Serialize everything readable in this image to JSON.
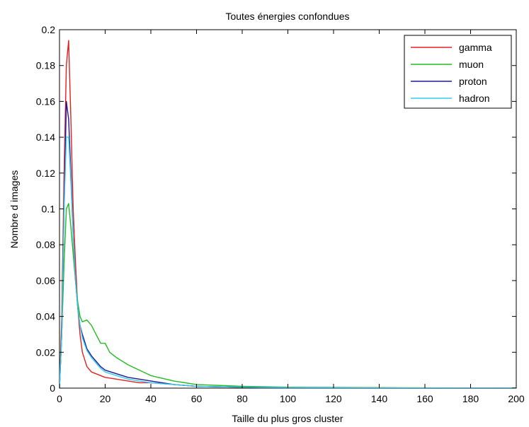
{
  "chart_data": {
    "type": "line",
    "title": "Toutes énergies confondues",
    "xlabel": "Taille du plus gros cluster",
    "ylabel": "Nombre d images",
    "xlim": [
      0,
      200
    ],
    "ylim": [
      0,
      0.2
    ],
    "x_ticks": [
      "0",
      "20",
      "40",
      "60",
      "80",
      "100",
      "120",
      "140",
      "160",
      "180",
      "200"
    ],
    "y_ticks": [
      "0",
      "0.02",
      "0.04",
      "0.06",
      "0.08",
      "0.1",
      "0.12",
      "0.14",
      "0.16",
      "0.18",
      "0.2"
    ],
    "grid": false,
    "legend_position": "top-right",
    "series": [
      {
        "name": "gamma",
        "color": "#e32020",
        "x": [
          0,
          1,
          2,
          3,
          4,
          5,
          6,
          7,
          8,
          9,
          10,
          12,
          14,
          16,
          18,
          20,
          25,
          30,
          35,
          40,
          50,
          60,
          80,
          100,
          150,
          200
        ],
        "y": [
          0,
          0.04,
          0.12,
          0.18,
          0.194,
          0.15,
          0.1,
          0.07,
          0.045,
          0.03,
          0.02,
          0.012,
          0.009,
          0.008,
          0.007,
          0.006,
          0.005,
          0.004,
          0.003,
          0.003,
          0.002,
          0.001,
          0.0005,
          0.0003,
          0.0001,
          0
        ]
      },
      {
        "name": "muon",
        "color": "#22bb22",
        "x": [
          0,
          1,
          2,
          3,
          4,
          5,
          6,
          7,
          8,
          9,
          10,
          12,
          14,
          16,
          18,
          20,
          22,
          25,
          30,
          35,
          40,
          50,
          60,
          80,
          100,
          150,
          200
        ],
        "y": [
          0,
          0.03,
          0.07,
          0.1,
          0.103,
          0.09,
          0.075,
          0.06,
          0.048,
          0.04,
          0.037,
          0.038,
          0.035,
          0.03,
          0.025,
          0.025,
          0.02,
          0.017,
          0.013,
          0.01,
          0.007,
          0.004,
          0.002,
          0.001,
          0.0005,
          0.0002,
          0
        ]
      },
      {
        "name": "proton",
        "color": "#1a1a99",
        "x": [
          0,
          1,
          2,
          3,
          4,
          5,
          6,
          7,
          8,
          9,
          10,
          12,
          14,
          16,
          18,
          20,
          25,
          30,
          35,
          40,
          50,
          60,
          80,
          100,
          150,
          200
        ],
        "y": [
          0,
          0.03,
          0.1,
          0.16,
          0.15,
          0.12,
          0.085,
          0.06,
          0.045,
          0.035,
          0.03,
          0.022,
          0.018,
          0.015,
          0.012,
          0.01,
          0.008,
          0.006,
          0.005,
          0.004,
          0.002,
          0.001,
          0.0005,
          0.0003,
          0.0001,
          0
        ]
      },
      {
        "name": "hadron",
        "color": "#33ccee",
        "x": [
          0,
          1,
          2,
          3,
          4,
          5,
          6,
          7,
          8,
          9,
          10,
          12,
          14,
          16,
          18,
          20,
          25,
          30,
          35,
          40,
          50,
          60,
          80,
          100,
          150,
          200
        ],
        "y": [
          0,
          0.03,
          0.1,
          0.14,
          0.14,
          0.115,
          0.085,
          0.06,
          0.045,
          0.035,
          0.028,
          0.021,
          0.017,
          0.014,
          0.011,
          0.009,
          0.007,
          0.005,
          0.004,
          0.003,
          0.002,
          0.001,
          0.0005,
          0.0003,
          0.0001,
          0
        ]
      }
    ]
  }
}
